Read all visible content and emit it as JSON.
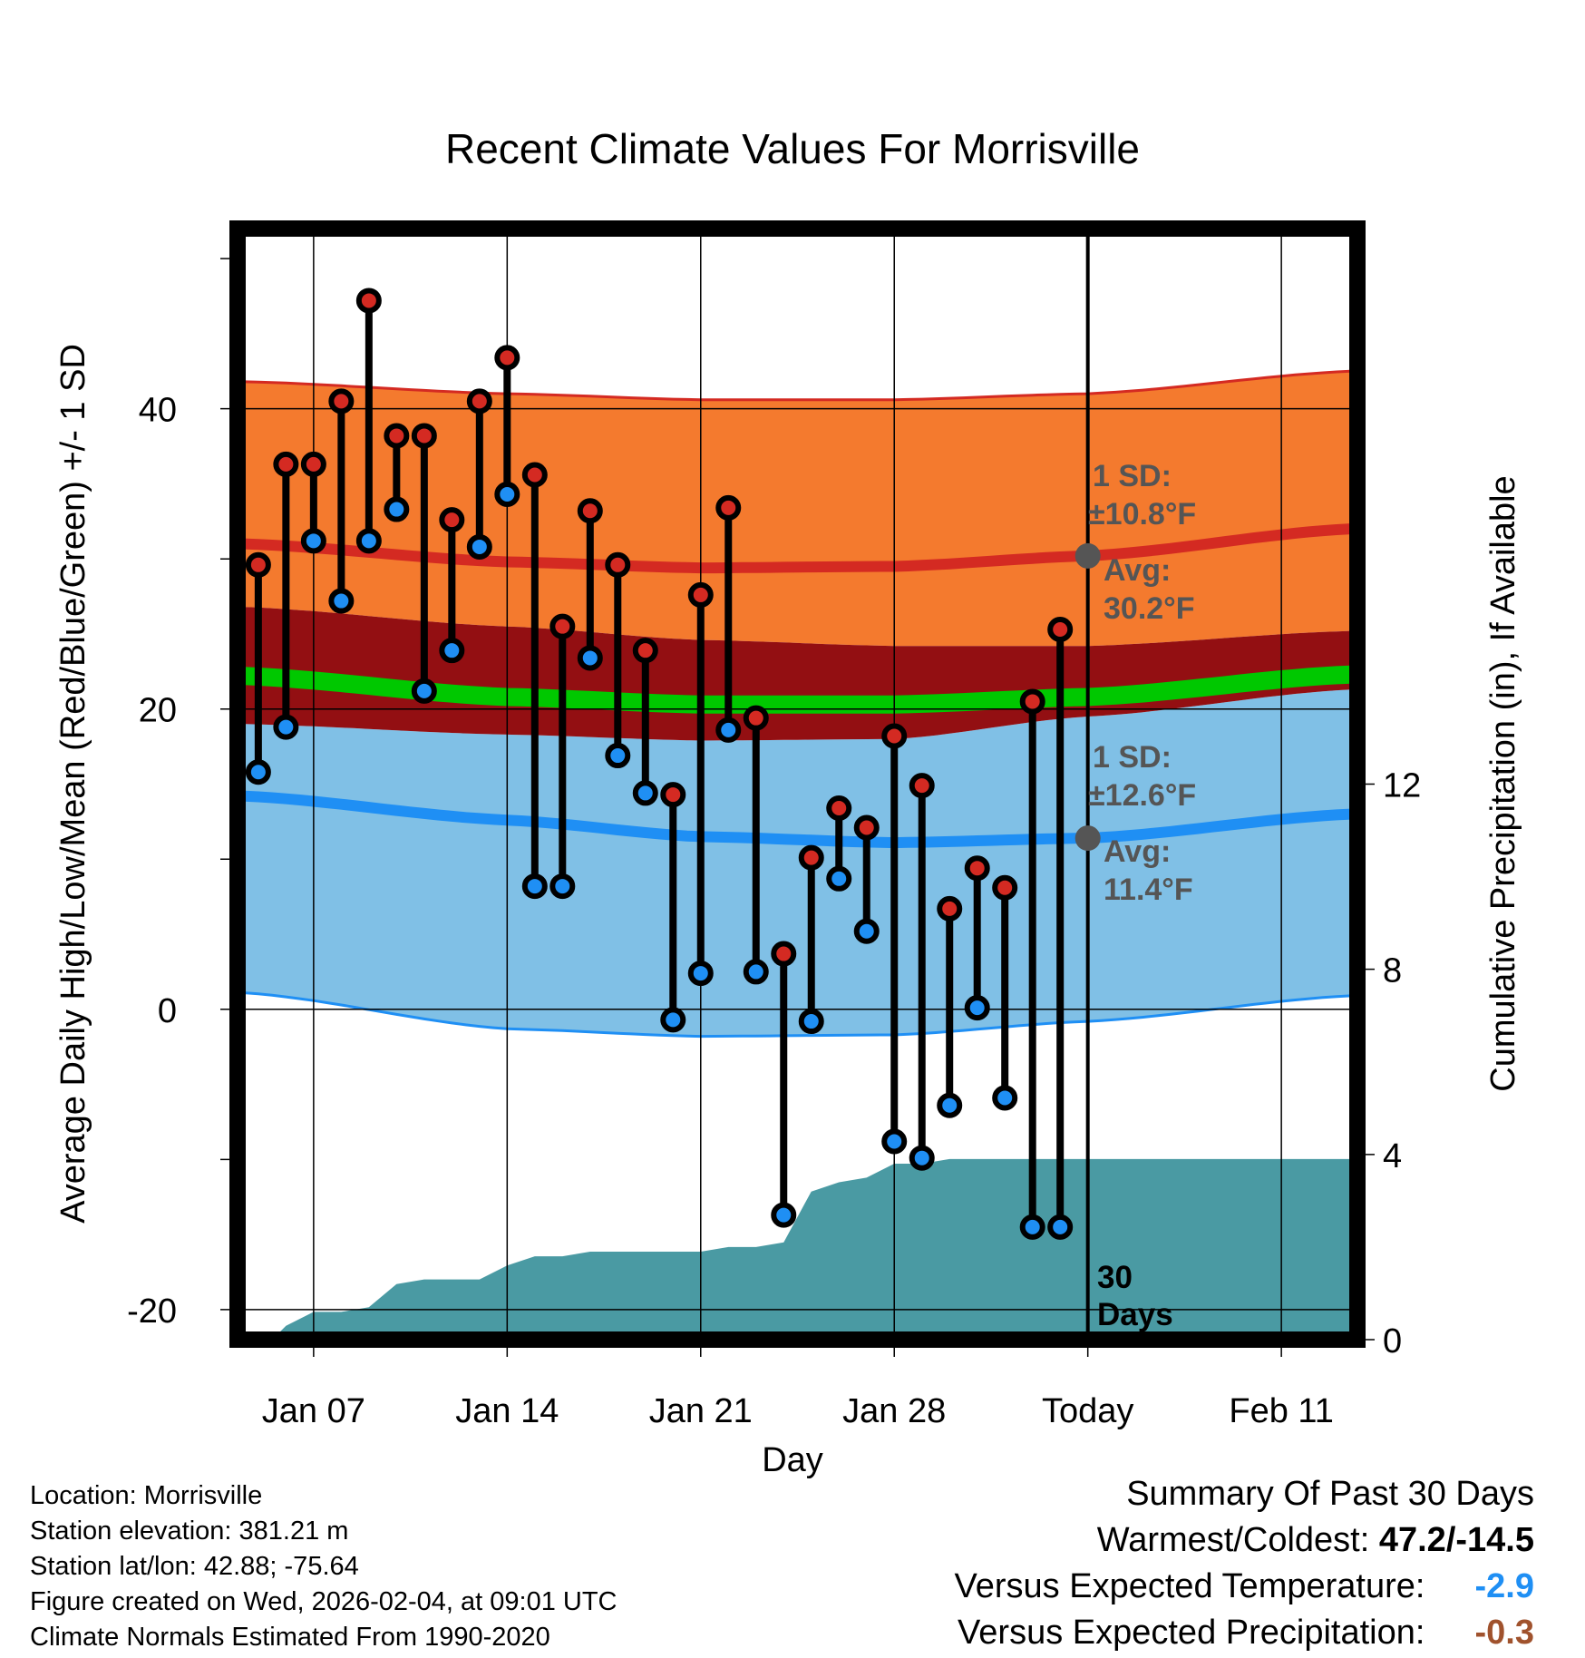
{
  "chart_data": {
    "type": "line",
    "title": "Recent Climate Values For Morrisville",
    "xlabel": "Day",
    "ylabel": "Average Daily High/Low/Mean (Red/Blue/Green) +/- 1 SD",
    "y2label": "Cumulative Precipitation (in), If Available",
    "x_range_days": [
      -30.75,
      9.75
    ],
    "ylim": [
      -22,
      52
    ],
    "y2lim": [
      0,
      24
    ],
    "x_ticks": [
      {
        "day": -28,
        "label": "Jan 07"
      },
      {
        "day": -21,
        "label": "Jan 14"
      },
      {
        "day": -14,
        "label": "Jan 21"
      },
      {
        "day": -7,
        "label": "Jan 28"
      },
      {
        "day": 0,
        "label": "Today"
      },
      {
        "day": 7,
        "label": "Feb 11"
      }
    ],
    "y_ticks": [
      -20,
      0,
      20,
      40
    ],
    "y2_ticks": [
      0,
      4,
      8,
      12
    ],
    "normals": {
      "days": [
        -30.5,
        -21,
        -14,
        -7,
        0,
        9.5
      ],
      "high_mean": [
        31.0,
        29.8,
        29.4,
        29.5,
        30.2,
        32.0
      ],
      "high_upper": [
        41.8,
        41.0,
        40.6,
        40.6,
        41.0,
        42.5
      ],
      "high_lower": [
        26.8,
        25.5,
        24.6,
        24.2,
        24.2,
        25.2
      ],
      "low_mean": [
        14.2,
        12.6,
        11.5,
        11.1,
        11.4,
        13.0
      ],
      "low_upper": [
        19.0,
        18.3,
        17.9,
        18.0,
        19.5,
        21.3
      ],
      "low_lower": [
        1.1,
        -1.3,
        -1.8,
        -1.7,
        -0.8,
        0.9
      ],
      "mean": [
        22.2,
        20.8,
        20.3,
        20.3,
        20.8,
        22.3
      ],
      "high_sd_label": "1 SD:",
      "high_sd_value": "±10.8°F",
      "high_avg_label": "Avg:",
      "high_avg_value": "30.2°F",
      "low_sd_label": "1 SD:",
      "low_sd_value": "±12.6°F",
      "low_avg_label": "Avg:",
      "low_avg_value": "11.4°F",
      "high_today": 30.2,
      "low_today": 11.4
    },
    "observations": {
      "days": [
        -30,
        -29,
        -28,
        -27,
        -26,
        -25,
        -24,
        -23,
        -22,
        -21,
        -20,
        -19,
        -18,
        -17,
        -16,
        -15,
        -14,
        -13,
        -12,
        -11,
        -10,
        -9,
        -8,
        -7,
        -6,
        -5,
        -4,
        -3,
        -2,
        -1
      ],
      "highs": [
        29.6,
        36.3,
        36.3,
        40.5,
        47.2,
        38.2,
        38.2,
        32.6,
        40.5,
        43.4,
        35.6,
        25.5,
        33.2,
        29.6,
        23.9,
        14.3,
        27.6,
        33.4,
        19.4,
        3.7,
        10.1,
        13.4,
        12.1,
        18.2,
        14.9,
        6.7,
        9.4,
        8.1,
        20.5,
        25.3
      ],
      "lows": [
        15.8,
        18.8,
        31.2,
        27.2,
        31.2,
        33.3,
        21.2,
        23.9,
        30.8,
        34.3,
        8.2,
        8.2,
        23.4,
        16.9,
        14.4,
        -0.7,
        2.4,
        18.6,
        2.5,
        -13.7,
        -0.8,
        8.7,
        5.2,
        -8.8,
        -9.9,
        -6.4,
        0.1,
        -5.9,
        -14.5,
        -14.5
      ]
    },
    "precipitation": {
      "days": [
        -30.5,
        -29.5,
        -29,
        -28,
        -27,
        -26,
        -25,
        -24,
        -23,
        -22,
        -21,
        -20,
        -19,
        -18,
        -17,
        -16,
        -15,
        -14,
        -13,
        -12,
        -11,
        -10,
        -9,
        -8,
        -7,
        -6,
        -5,
        -4,
        -3,
        -2,
        -1,
        0,
        9.5
      ],
      "cumulative": [
        0,
        0,
        0.3,
        0.6,
        0.6,
        0.7,
        1.2,
        1.3,
        1.3,
        1.3,
        1.6,
        1.8,
        1.8,
        1.9,
        1.9,
        1.9,
        1.9,
        1.9,
        2.0,
        2.0,
        2.1,
        3.2,
        3.4,
        3.5,
        3.8,
        3.8,
        3.9,
        3.9,
        3.9,
        3.9,
        3.9,
        3.9,
        3.9
      ],
      "days_label": "30",
      "days_label2": "Days"
    }
  },
  "station": {
    "location": "Location: Morrisville",
    "elevation": "Station elevation: 381.21 m",
    "latlon": "Station lat/lon: 42.88; -75.64",
    "created": "Figure created on Wed, 2026-02-04, at 09:01 UTC",
    "normals": "Climate Normals Estimated From 1990-2020"
  },
  "summary": {
    "heading": "Summary Of Past 30 Days",
    "warm_cold_label": "Warmest/Coldest:",
    "warm_cold_value": "47.2/-14.5",
    "temp_label": "Versus Expected Temperature:",
    "temp_value": "-2.9",
    "precip_label": "Versus Expected Precipitation:",
    "precip_value": "-0.3"
  },
  "colors": {
    "high_band": "#f47a2e",
    "high_line": "#d42a22",
    "overlap_band": "#930f12",
    "low_band": "#80c0e6",
    "low_line": "#1f8ff4",
    "mean_line": "#00c800",
    "precip_fill": "#4a9aa3",
    "label_gray": "#555555",
    "temp_value": "#1f8ff4",
    "precip_value": "#a0522d"
  }
}
